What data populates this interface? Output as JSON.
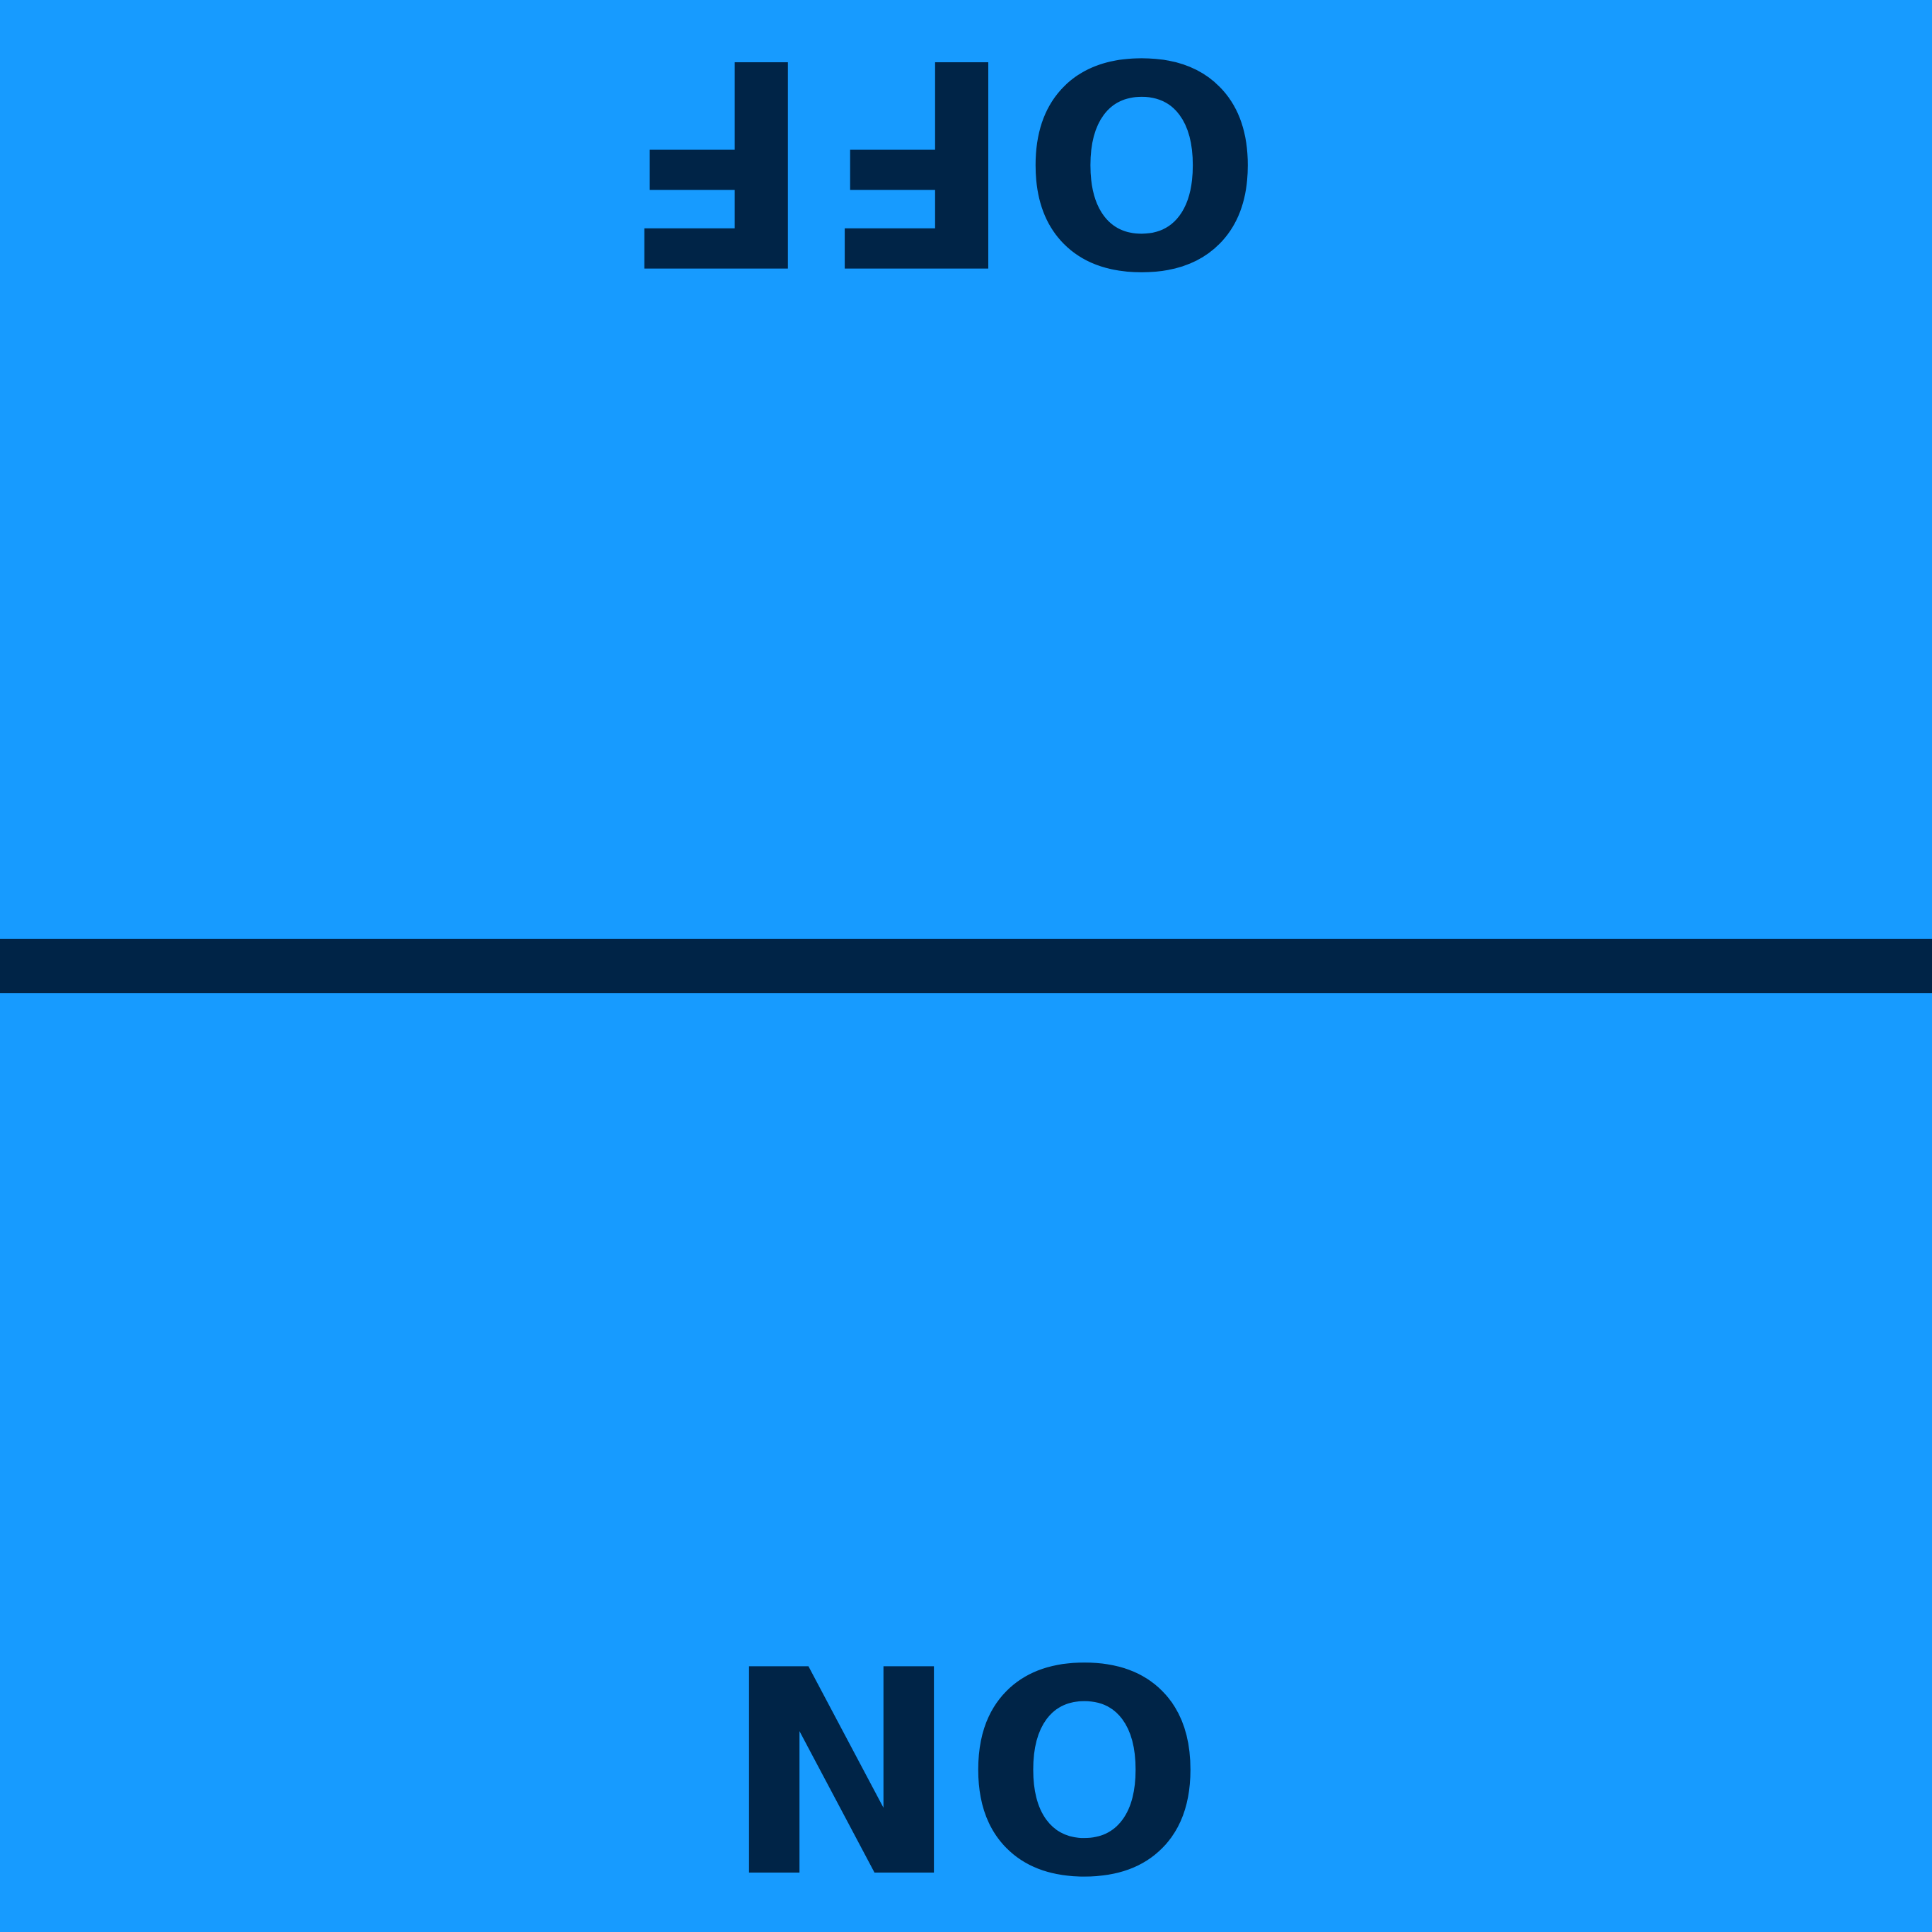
{
  "sign": {
    "top_text": "OFF",
    "bottom_text": "NO"
  },
  "colors": {
    "background": "#179bff",
    "foreground": "#002447"
  }
}
